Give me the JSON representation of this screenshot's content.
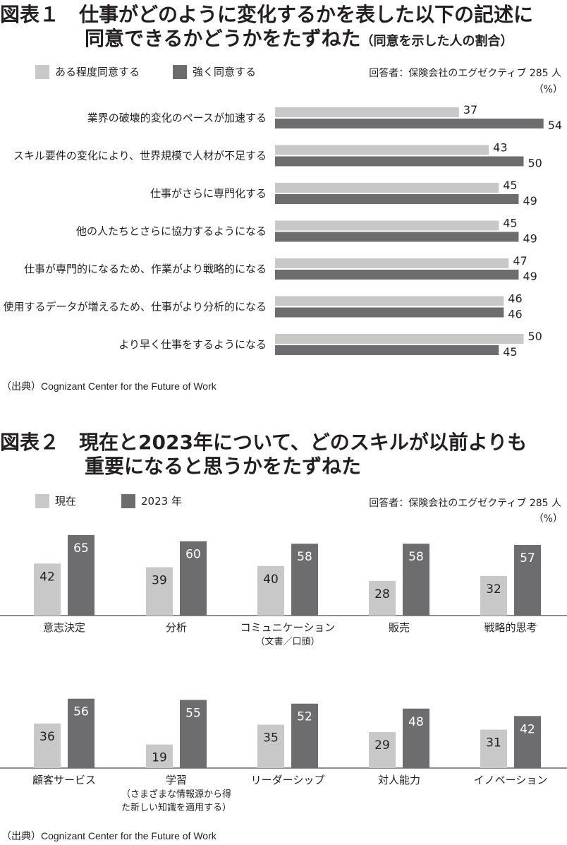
{
  "colors": {
    "light": "#c8c8c9",
    "dark": "#6d6d6f",
    "text": "#231f20"
  },
  "fig1": {
    "prefix": "図表１",
    "title_line1": "仕事がどのように変化するかを表した以下の記述に",
    "title_line2": "同意できるかどうかをたずねた",
    "title_note": "（同意を示した人の割合）",
    "legend": [
      "ある程度同意する",
      "強く同意する"
    ],
    "respondents": "回答者：保険会社のエグゼクティブ 285 人",
    "unit": "（%）",
    "source": "（出典）Cognizant Center for the Future of Work"
  },
  "fig2": {
    "prefix": "図表２",
    "title_line1": "現在と2023年について、どのスキルが以前よりも",
    "title_line2": "重要になると思うかをたずねた",
    "legend": [
      "現在",
      "2023 年"
    ],
    "respondents": "回答者：保険会社のエグゼクティブ 285 人",
    "unit": "（%）",
    "source": "（出典）Cognizant Center for the Future of Work"
  },
  "chart_data": [
    {
      "type": "bar",
      "orientation": "horizontal",
      "categories": [
        "業界の破壊的変化のペースが加速する",
        "スキル要件の変化により、世界規模で人材が不足する",
        "仕事がさらに専門化する",
        "他の人たちとさらに協力するようになる",
        "仕事が専門的になるため、作業がより戦略的になる",
        "使用するデータが増えるため、仕事がより分析的になる",
        "より早く仕事をするようになる"
      ],
      "series": [
        {
          "name": "ある程度同意する",
          "values": [
            37,
            43,
            45,
            45,
            47,
            46,
            50
          ]
        },
        {
          "name": "強く同意する",
          "values": [
            54,
            50,
            49,
            49,
            49,
            46,
            45
          ]
        }
      ],
      "xlim": [
        0,
        60
      ],
      "legend": "top-left",
      "grid": false
    },
    {
      "type": "bar",
      "orientation": "vertical",
      "categories": [
        [
          "意志決定"
        ],
        [
          "分析"
        ],
        [
          "コミュニケーション",
          "（文書／口頭）"
        ],
        [
          "販売"
        ],
        [
          "戦略的思考"
        ],
        [
          "顧客サービス"
        ],
        [
          "学習",
          "（さまざまな情報源から得",
          "た新しい知識を適用する）"
        ],
        [
          "リーダーシップ"
        ],
        [
          "対人能力"
        ],
        [
          "イノベーション"
        ]
      ],
      "series": [
        {
          "name": "現在",
          "values": [
            42,
            39,
            40,
            28,
            32,
            36,
            19,
            35,
            29,
            31
          ]
        },
        {
          "name": "2023 年",
          "values": [
            65,
            60,
            58,
            58,
            57,
            56,
            55,
            52,
            48,
            42
          ]
        }
      ],
      "ylim": [
        0,
        70
      ],
      "legend": "top-left",
      "grid": false
    }
  ]
}
